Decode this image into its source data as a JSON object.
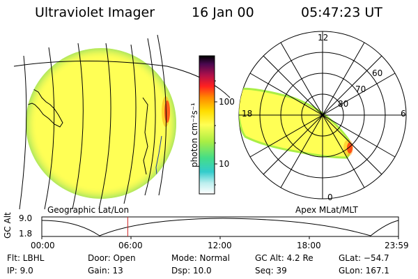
{
  "header": {
    "title": "Ultraviolet Imager",
    "date": "16 Jan 00",
    "time": "05:47:23 UT"
  },
  "colorbar": {
    "unit_label": "photon cm⁻²s⁻¹",
    "ticks": [
      "100",
      "10"
    ],
    "colors": [
      "#000000",
      "#5a0a5a",
      "#b0104a",
      "#ff2020",
      "#ff8800",
      "#ffdd00",
      "#ffff55",
      "#aaee44",
      "#44dd88",
      "#33cccc",
      "#bbeeee",
      "#ffffff"
    ]
  },
  "polar_plot": {
    "mlt_labels": {
      "top": "12",
      "left": "18",
      "right": "6",
      "bottom": "0"
    },
    "lat_labels": [
      "60",
      "70",
      "80"
    ]
  },
  "map_labels": {
    "left": "Geographic Lat/Lon",
    "right": "Apex MLat/MLT"
  },
  "timeline": {
    "ylabel": "GC Alt",
    "y_ticks": [
      "9.0",
      "1.8"
    ],
    "x_ticks": [
      "00:00",
      "06:00",
      "12:00",
      "18:00",
      "23:59"
    ],
    "current_time_fraction": 0.241,
    "marker_color": "#cc2222"
  },
  "info": {
    "flt": "Flt: LBHL",
    "ip": "IP:  9.0",
    "door": "Door: Open",
    "gain": "Gain: 13",
    "mode": "Mode: Normal",
    "dsp": "Dsp:    10.0",
    "gcalt": "GC Alt: 4.2 Re",
    "seq": "Seq: 39",
    "glat": "GLat: −54.7",
    "glon": "GLon: 167.1"
  }
}
